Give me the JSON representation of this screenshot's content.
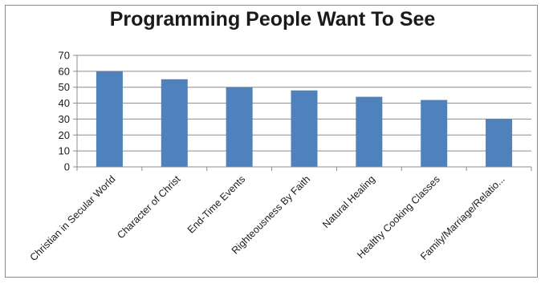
{
  "chart_data": {
    "type": "bar",
    "title": "Programming People Want To See",
    "xlabel": "",
    "ylabel": "",
    "categories": [
      "Christian in Secular World",
      "Character of Christ",
      "End-Time Events",
      "Righteousness By Faith",
      "Natural Healing",
      "Healthy Cooking Classes",
      "Family/Marriage/Relatio..."
    ],
    "values": [
      60,
      55,
      50,
      48,
      44,
      42,
      30
    ],
    "ylim": [
      0,
      70
    ],
    "yticks": [
      0,
      10,
      20,
      30,
      40,
      50,
      60,
      70
    ],
    "grid": true,
    "legend": "none",
    "colors": {
      "bar": "#4f81bd",
      "grid": "#8c8c8c",
      "axis": "#8c8c8c"
    }
  }
}
